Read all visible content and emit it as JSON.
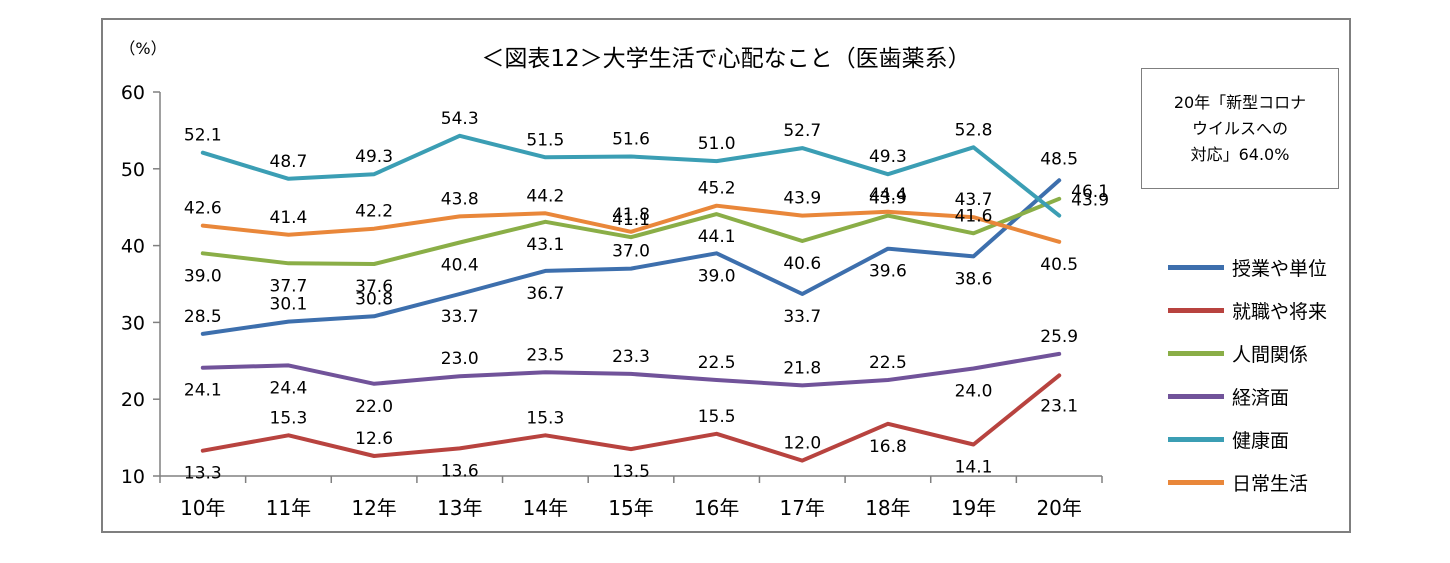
{
  "chart_data": {
    "type": "line",
    "title": "＜図表12＞大学生活で心配なこと（医歯薬系）",
    "ylabel": "（%）",
    "xlabel": "",
    "ylim": [
      10,
      60
    ],
    "yticks": [
      10,
      20,
      30,
      40,
      50,
      60
    ],
    "categories": [
      "10年",
      "11年",
      "12年",
      "13年",
      "14年",
      "15年",
      "16年",
      "17年",
      "18年",
      "19年",
      "20年"
    ],
    "grid": false,
    "legend_position": "right",
    "annotation": [
      "20年「新型コロナ",
      "ウイルスへの",
      "対応」64.0%"
    ],
    "series": [
      {
        "name": "授業や単位",
        "color": "#3d6fad",
        "values": [
          28.5,
          30.1,
          30.8,
          33.7,
          36.7,
          37.0,
          39.0,
          33.7,
          39.6,
          38.6,
          48.5
        ]
      },
      {
        "name": "就職や将来",
        "color": "#b8433f",
        "values": [
          13.3,
          15.3,
          12.6,
          13.6,
          15.3,
          13.5,
          15.5,
          12.0,
          16.8,
          14.1,
          23.1
        ]
      },
      {
        "name": "人間関係",
        "color": "#8aae47",
        "values": [
          39.0,
          37.7,
          37.6,
          40.4,
          43.1,
          41.1,
          44.1,
          40.6,
          43.9,
          41.6,
          46.1
        ]
      },
      {
        "name": "経済面",
        "color": "#71539a",
        "values": [
          24.1,
          24.4,
          22.0,
          23.0,
          23.5,
          23.3,
          22.5,
          21.8,
          22.5,
          24.0,
          25.9
        ]
      },
      {
        "name": "健康面",
        "color": "#3b9eb4",
        "values": [
          52.1,
          48.7,
          49.3,
          54.3,
          51.5,
          51.6,
          51.0,
          52.7,
          49.3,
          52.8,
          43.9
        ]
      },
      {
        "name": "日常生活",
        "color": "#e9873a",
        "values": [
          42.6,
          41.4,
          42.2,
          43.8,
          44.2,
          41.8,
          45.2,
          43.9,
          44.4,
          43.7,
          40.5
        ]
      }
    ]
  }
}
